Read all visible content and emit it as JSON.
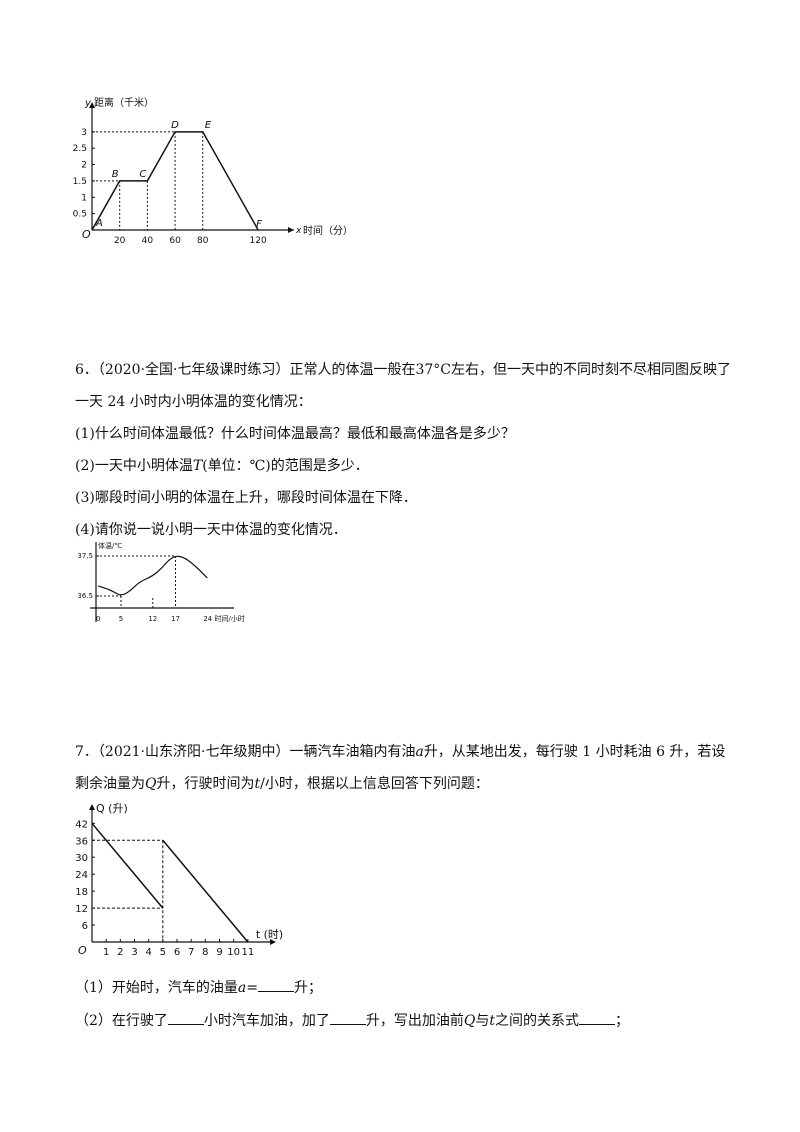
{
  "chart_data": [
    {
      "type": "line",
      "title": "",
      "ylabel": "距离（千米）",
      "xlabel": "时间（分）",
      "x_axis_letter": "x",
      "y_axis_letter": "y",
      "origin_label": "O",
      "xlim": [
        0,
        130
      ],
      "ylim": [
        0,
        3.3
      ],
      "xticks": [
        20,
        40,
        60,
        80,
        120
      ],
      "yticks": [
        0.5,
        1,
        1.5,
        2,
        2.5,
        3
      ],
      "points": [
        {
          "label": "A",
          "x": 0,
          "y": 0
        },
        {
          "label": "B",
          "x": 20,
          "y": 1.5
        },
        {
          "label": "C",
          "x": 40,
          "y": 1.5
        },
        {
          "label": "D",
          "x": 60,
          "y": 3
        },
        {
          "label": "E",
          "x": 80,
          "y": 3
        },
        {
          "label": "F",
          "x": 120,
          "y": 0
        }
      ]
    },
    {
      "type": "line",
      "title": "",
      "ylabel": "体温/℃",
      "xlabel": "24 时间/小时",
      "xlim": [
        -0.5,
        26
      ],
      "ylim": [
        36.2,
        37.7
      ],
      "xticks": [
        0,
        5,
        12,
        17
      ],
      "yticks": [
        36.5,
        37.5
      ],
      "x": [
        0,
        2,
        3.5,
        5,
        7,
        9,
        12,
        14,
        15.5,
        17,
        18.5,
        20,
        22,
        24
      ],
      "y": [
        36.75,
        36.68,
        36.6,
        36.5,
        36.62,
        36.85,
        37.0,
        37.2,
        37.4,
        37.5,
        37.48,
        37.38,
        37.18,
        36.95
      ]
    },
    {
      "type": "line",
      "title": "",
      "ylabel": "Q (升)",
      "xlabel": "t (时)",
      "origin_label": "O",
      "xlim": [
        0,
        12
      ],
      "ylim": [
        0,
        46
      ],
      "xticks": [
        1,
        2,
        3,
        4,
        5,
        6,
        7,
        8,
        9,
        10,
        11
      ],
      "yticks": [
        6,
        12,
        18,
        24,
        30,
        36,
        42
      ],
      "series": [
        {
          "x": [
            0,
            5
          ],
          "y": [
            42,
            12
          ]
        },
        {
          "x": [
            5,
            11
          ],
          "y": [
            36,
            0
          ]
        }
      ]
    }
  ],
  "q6": {
    "number": "6．",
    "source": "（2020·全国·七年级课时练习）",
    "stem_line1": "正常人的体温一般在37°C左右，但一天中的不同时刻不尽相同图反映了",
    "stem_line2": "一天 24 小时内小明体温的变化情况：",
    "p1": "(1)什么时间体温最低？什么时间体温最高？最低和最高体温各是多少？",
    "p2_a": "(2)一天中小明体温",
    "p2_var": "T",
    "p2_b": "(单位：℃)的范围是多少．",
    "p3": "(3)哪段时间小明的体温在上升，哪段时间体温在下降．",
    "p4": "(4)请你说一说小明一天中体温的变化情况．"
  },
  "q7": {
    "number": "7．",
    "source": "（2021·山东济阳·七年级期中）",
    "stem_a": "一辆汽车油箱内有油",
    "var_a": "a",
    "stem_b": "升，从某地出发，每行驶 1 小时耗油 6 升，若设",
    "line2_a": "剩余油量为",
    "var_q": "Q",
    "line2_b": "升，行驶时间为",
    "var_t": "t",
    "line2_c": "/小时，根据以上信息回答下列问题：",
    "s1_a": "（1）开始时，汽车的油量",
    "s1_var": "a",
    "s1_eq": "=",
    "s1_b": "升；",
    "s2_a": "（2）在行驶了",
    "s2_b": "小时汽车加油，加了",
    "s2_c": "升，写出加油前",
    "s2_var_q": "Q",
    "s2_d": "与",
    "s2_var_t": "t",
    "s2_e": "之间的关系式",
    "s2_f": "；"
  }
}
